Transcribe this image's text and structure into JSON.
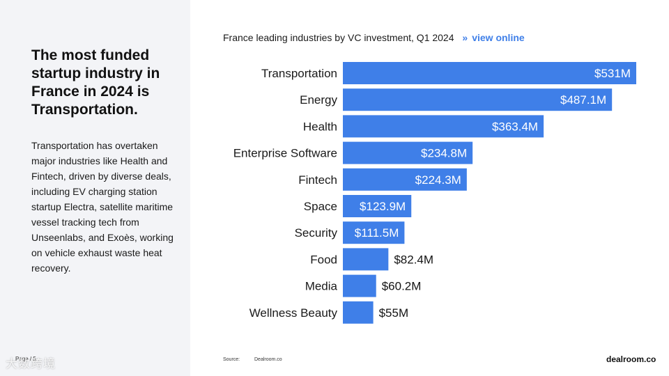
{
  "left": {
    "headline": "The most funded startup industry in France in 2024 is Transportation.",
    "body": "Transportation has overtaken major industries like Health and Fintech, driven by diverse deals, including EV charging station startup Electra, satellite maritime vessel tracking tech from Unseenlabs, and Exoès, working on vehicle exhaust waste heat recovery.",
    "page": "Page / 5",
    "watermark": "大数跨境"
  },
  "header": {
    "title": "France leading industries by VC investment, Q1 2024",
    "link_icon": "»",
    "link_label": "view online"
  },
  "footer": {
    "source_label": "Source:",
    "source_value": "Dealroom.co",
    "logo": "dealroom.co"
  },
  "colors": {
    "bar": "#3f7fe8",
    "value_inside": "#ffffff",
    "value_outside": "#141414",
    "panel": "#f3f4f7"
  },
  "chart_data": {
    "type": "bar",
    "orientation": "horizontal",
    "title": "France leading industries by VC investment, Q1 2024",
    "categories": [
      "Transportation",
      "Energy",
      "Health",
      "Enterprise Software",
      "Fintech",
      "Space",
      "Security",
      "Food",
      "Media",
      "Wellness Beauty"
    ],
    "values": [
      531,
      487.1,
      363.4,
      234.8,
      224.3,
      123.9,
      111.5,
      82.4,
      60.2,
      55
    ],
    "value_labels": [
      "$531M",
      "$487.1M",
      "$363.4M",
      "$234.8M",
      "$224.3M",
      "$123.9M",
      "$111.5M",
      "$82.4M",
      "$60.2M",
      "$55M"
    ],
    "unit": "$M",
    "xlim": [
      0,
      531
    ],
    "grid": false,
    "legend": "none"
  }
}
